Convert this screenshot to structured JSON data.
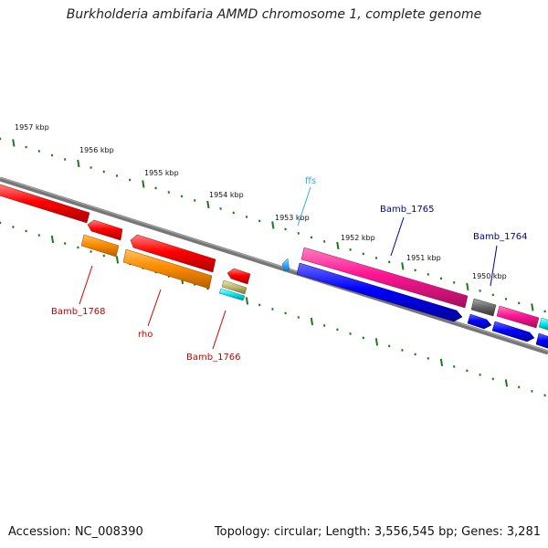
{
  "title": "Burkholderia ambifaria AMMD chromosome 1, complete genome",
  "footer": {
    "accession": "Accession: NC_008390",
    "summary": "Topology: circular; Length: 3,556,545 bp; Genes: 3,281"
  },
  "colors": {
    "backbone": "#777777",
    "tick": "#1a7a1a",
    "red": "#ff0000",
    "orange": "#ff8c00",
    "pink": "#ff1493",
    "blue": "#0000ff",
    "gray": "#666666",
    "cyan": "#00e5ee",
    "tan": "#bdb76b",
    "sky": "#33aaff",
    "label_red": "#cc0000",
    "label_blue": "#000099",
    "label_sky": "#33aadd"
  },
  "scale_labels": [
    "1957 kbp",
    "1956 kbp",
    "1955 kbp",
    "1954 kbp",
    "1953 kbp",
    "1952 kbp",
    "1951 kbp",
    "1950 kbp"
  ],
  "gene_labels": [
    {
      "id": "bamb1768",
      "text": "Bamb_1768",
      "color": "label_red"
    },
    {
      "id": "rho",
      "text": "rho",
      "color": "label_red"
    },
    {
      "id": "bamb1766",
      "text": "Bamb_1766",
      "color": "label_red"
    },
    {
      "id": "ffs",
      "text": "ffs",
      "color": "label_sky"
    },
    {
      "id": "bamb1765",
      "text": "Bamb_1765",
      "color": "label_blue"
    },
    {
      "id": "bamb1764",
      "text": "Bamb_1764",
      "color": "label_blue"
    }
  ]
}
